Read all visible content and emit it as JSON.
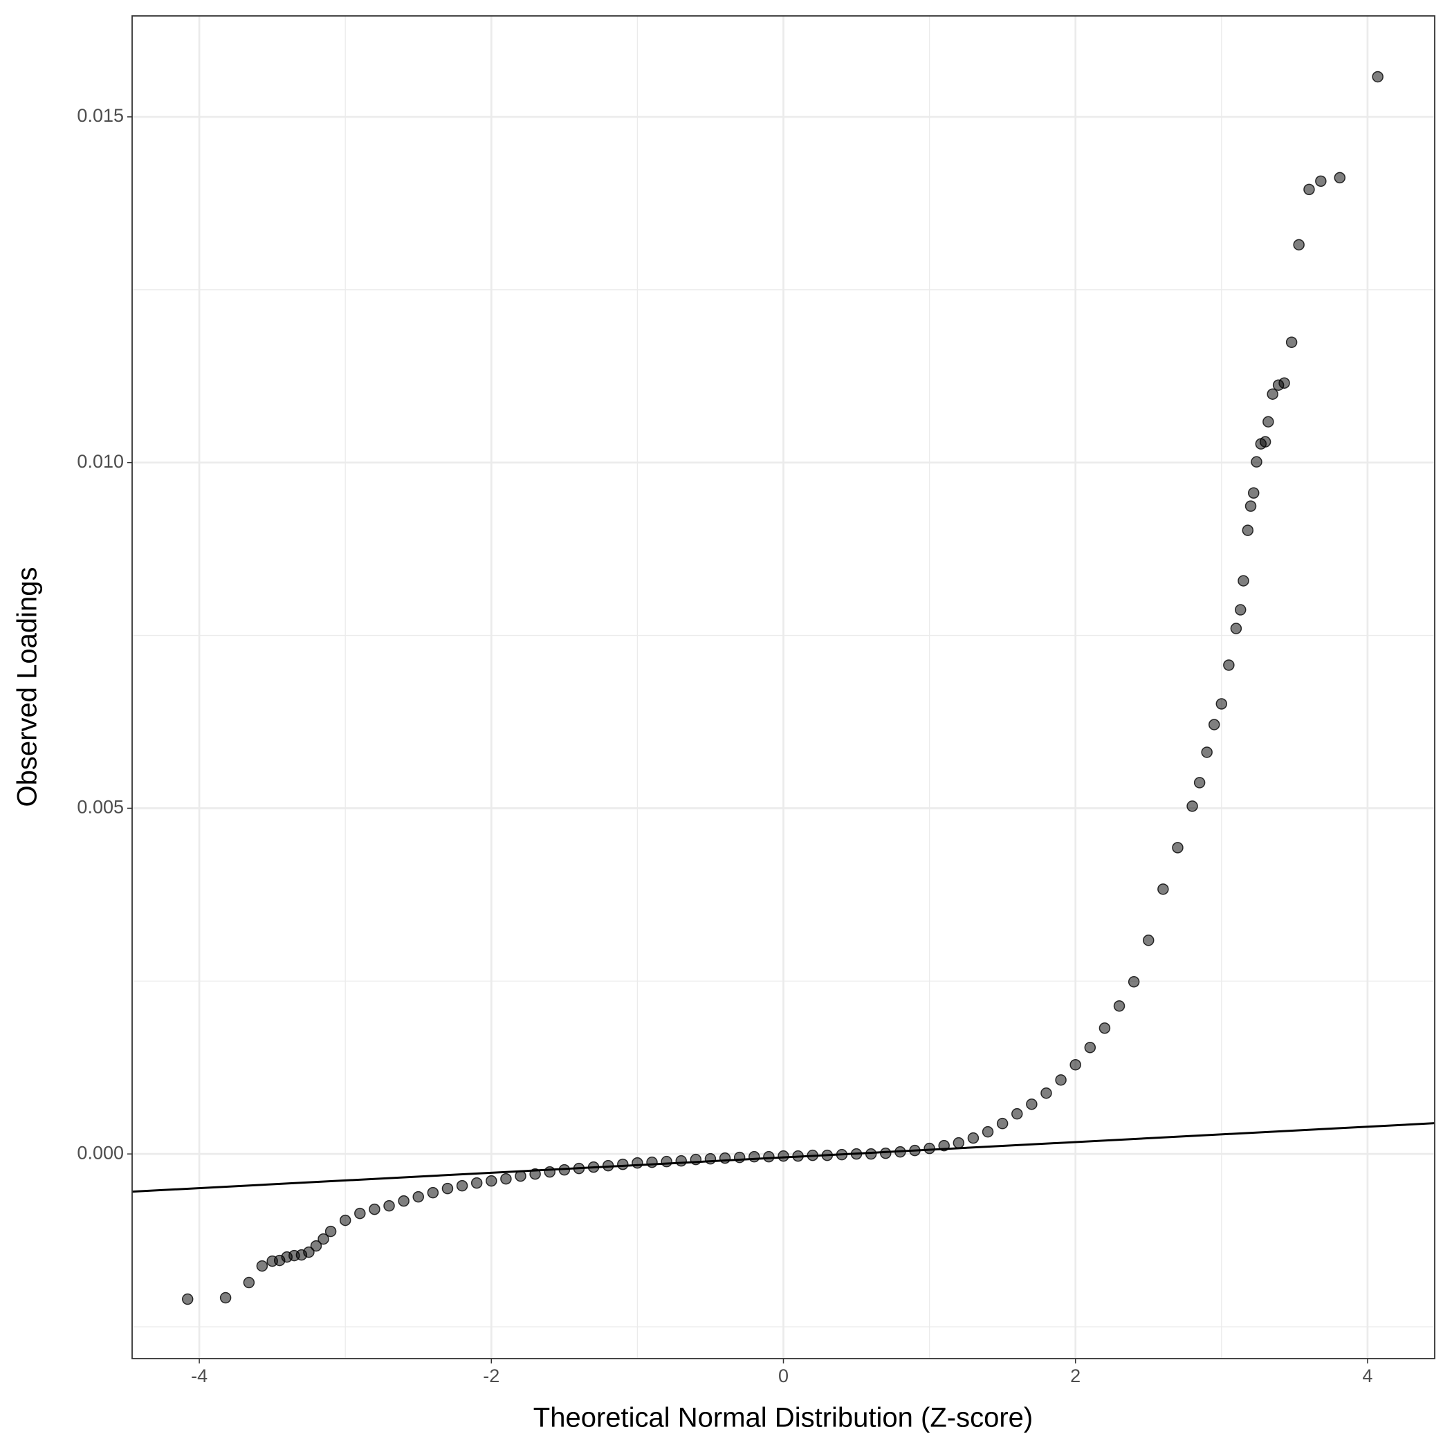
{
  "chart_data": {
    "type": "scatter",
    "x_label": "Theoretical Normal Distribution (Z-score)",
    "y_label": "Observed Loadings",
    "x": [
      -4.08,
      -3.82,
      -3.66,
      -3.57,
      -3.5,
      -3.45,
      -3.4,
      -3.35,
      -3.3,
      -3.25,
      -3.2,
      -3.15,
      -3.1,
      -3.0,
      -2.9,
      -2.8,
      -2.7,
      -2.6,
      -2.5,
      -2.4,
      -2.3,
      -2.2,
      -2.1,
      -2.0,
      -1.9,
      -1.8,
      -1.7,
      -1.6,
      -1.5,
      -1.4,
      -1.3,
      -1.2,
      -1.1,
      -1.0,
      -0.9,
      -0.8,
      -0.7,
      -0.6,
      -0.5,
      -0.4,
      -0.3,
      -0.2,
      -0.1,
      0,
      0.1,
      0.2,
      0.3,
      0.4,
      0.5,
      0.6,
      0.7,
      0.8,
      0.9,
      1.0,
      1.1,
      1.2,
      1.3,
      1.4,
      1.5,
      1.6,
      1.7,
      1.8,
      1.9,
      2.0,
      2.1,
      2.2,
      2.3,
      2.4,
      2.5,
      2.6,
      2.7,
      2.8,
      2.85,
      2.9,
      2.95,
      3.0,
      3.05,
      3.1,
      3.13,
      3.15,
      3.18,
      3.2,
      3.22,
      3.24,
      3.27,
      3.3,
      3.32,
      3.35,
      3.39,
      3.43,
      3.48,
      3.53,
      3.6,
      3.68,
      3.81,
      4.07
    ],
    "values": [
      -0.0021,
      -0.00208,
      -0.00186,
      -0.00162,
      -0.00155,
      -0.00154,
      -0.00149,
      -0.00147,
      -0.00146,
      -0.00142,
      -0.00133,
      -0.00123,
      -0.00112,
      -0.00096,
      -0.00086,
      -0.0008,
      -0.00075,
      -0.00068,
      -0.00062,
      -0.00056,
      -0.0005,
      -0.00046,
      -0.00042,
      -0.00039,
      -0.00036,
      -0.00032,
      -0.00029,
      -0.00026,
      -0.00023,
      -0.00021,
      -0.00019,
      -0.00017,
      -0.00015,
      -0.00013,
      -0.00012,
      -0.00011,
      -0.0001,
      -8e-05,
      -7e-05,
      -6e-05,
      -5e-05,
      -4e-05,
      -4e-05,
      -3e-05,
      -3e-05,
      -2e-05,
      -2e-05,
      -1e-05,
      0,
      0,
      1e-05,
      3e-05,
      5e-05,
      8e-05,
      0.00012,
      0.00016,
      0.00023,
      0.00032,
      0.00044,
      0.00058,
      0.00072,
      0.00088,
      0.00107,
      0.00129,
      0.00154,
      0.00182,
      0.00214,
      0.00249,
      0.00309,
      0.00383,
      0.00443,
      0.00503,
      0.00537,
      0.00581,
      0.00621,
      0.00651,
      0.00707,
      0.0076,
      0.00787,
      0.00829,
      0.00902,
      0.00937,
      0.00956,
      0.01001,
      0.01027,
      0.0103,
      0.01059,
      0.01099,
      0.01112,
      0.01115,
      0.01174,
      0.01315,
      0.01395,
      0.01407,
      0.01412,
      0.01558
    ],
    "color": "#000000",
    "marker_opacity": 0.5,
    "reference_line": {
      "intercept": -5e-05,
      "slope": 0.000111,
      "color": "#000000"
    },
    "xlim": [
      -4.46,
      4.46
    ],
    "xticks": [
      -4,
      -2,
      0,
      2,
      4
    ],
    "ylim": [
      -0.00296,
      0.01646
    ],
    "yticks": [
      {
        "value": 0,
        "label": "0.000"
      },
      {
        "value": 0.005,
        "label": "0.005"
      },
      {
        "value": 0.01,
        "label": "0.010"
      },
      {
        "value": 0.015,
        "label": "0.015"
      }
    ],
    "x_minor_grid": [
      -3,
      -1,
      1,
      3
    ],
    "y_minor_grid": [
      -0.0025,
      0.0025,
      0.0075,
      0.0125
    ],
    "grid": true
  }
}
